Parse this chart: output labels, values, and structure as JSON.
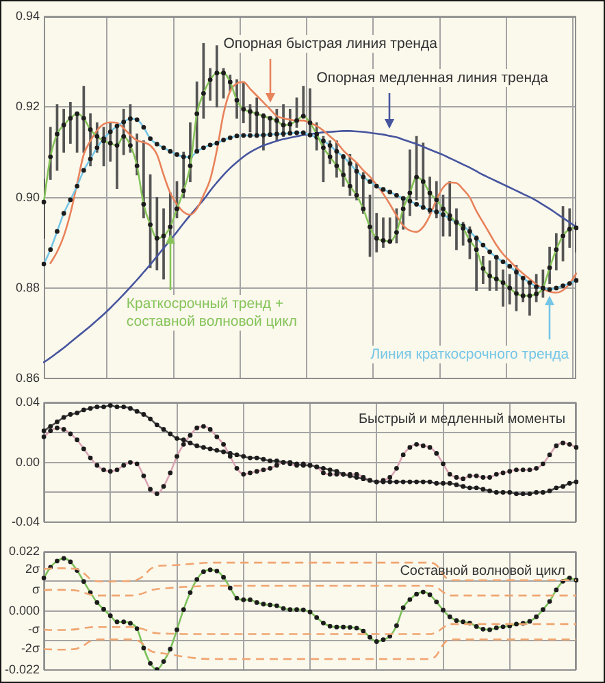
{
  "chart_data": [
    {
      "type": "line",
      "categories": [
        null,
        null,
        null,
        null,
        null,
        null,
        null,
        null,
        null,
        null,
        null,
        null,
        null,
        null,
        null,
        null,
        null,
        null,
        null,
        null,
        null,
        null,
        null,
        null,
        null,
        null,
        null,
        null,
        null,
        null,
        null,
        null,
        null,
        null,
        null,
        null,
        null,
        null,
        null,
        null,
        null,
        null,
        null,
        null,
        null,
        null,
        null,
        null,
        null,
        null,
        null,
        null,
        null,
        null,
        null,
        null,
        null,
        null,
        null,
        null,
        null,
        null,
        null,
        null,
        null,
        null,
        null,
        null,
        null,
        null,
        null,
        null,
        null,
        null,
        null,
        null,
        null,
        null,
        null,
        null,
        null
      ],
      "ylim": [
        0.86,
        0.94
      ],
      "yticks": [
        0.86,
        0.88,
        {
          "value": 0.9,
          "label": "0.90"
        },
        0.92,
        0.94
      ],
      "grid": true,
      "tick_labels": "y",
      "series": [
        {
          "type": "bar",
          "color": "#555555",
          "base": [
            0.891,
            0.904,
            0.906,
            0.91,
            0.912,
            0.91,
            0.91,
            0.907,
            0.91,
            0.907,
            0.908,
            0.902,
            0.9095,
            0.91,
            0.905,
            0.8955,
            0.8845,
            0.884,
            0.882,
            0.891,
            0.8955,
            0.9,
            0.9035,
            0.91,
            0.9175,
            0.9215,
            0.92,
            0.922,
            0.9235,
            0.9175,
            0.9165,
            0.9145,
            0.9135,
            0.9105,
            0.9135,
            0.9125,
            0.9135,
            0.9145,
            0.9155,
            0.9175,
            0.9135,
            0.9105,
            0.9035,
            0.9075,
            0.9045,
            0.9025,
            0.9005,
            0.8995,
            0.8965,
            0.887,
            0.888,
            0.889,
            0.89,
            0.89,
            0.893,
            0.896,
            0.8995,
            0.898,
            0.8965,
            0.8955,
            0.8915,
            0.8915,
            0.8885,
            0.8895,
            0.8865,
            0.8795,
            0.881,
            0.8795,
            0.8795,
            0.876,
            0.8765,
            0.875,
            0.877,
            0.874,
            0.877,
            0.878,
            0.881,
            0.884,
            0.886,
            0.889,
            0.888
          ],
          "values": [
            0.013,
            0.0115,
            0.0145,
            0.0095,
            0.009,
            0.0085,
            0.0145,
            0.0115,
            0.0065,
            0.0085,
            0.0085,
            0.0135,
            0.01,
            0.0105,
            0.009,
            0.017,
            0.0205,
            0.016,
            0.0155,
            0.01,
            0.008,
            0.01,
            0.013,
            0.0155,
            0.0165,
            0.007,
            0.0135,
            0.0065,
            0.0035,
            0.0085,
            0.009,
            0.006,
            0.0085,
            0.008,
            0.004,
            0.007,
            0.007,
            0.005,
            0.0065,
            0.007,
            0.0105,
            0.006,
            0.01,
            0.005,
            0.008,
            0.007,
            0.009,
            0.008,
            0.009,
            0.0135,
            0.0085,
            0.0065,
            0.0055,
            0.0075,
            0.0065,
            0.0145,
            0.014,
            0.014,
            0.008,
            0.008,
            0.009,
            0.012,
            0.009,
            0.005,
            0.007,
            0.012,
            0.006,
            0.0065,
            0.0075,
            0.008,
            0.0065,
            0.01,
            0.005,
            0.007,
            0.006,
            0.006,
            0.008,
            0.008,
            0.012,
            0.0085,
            0.0065
          ]
        },
        {
          "name": "Опорная медленная линия тренда",
          "color": "#46559e",
          "values": [
            0.8636,
            0.8646,
            0.8657,
            0.8668,
            0.868,
            0.8692,
            0.8704,
            0.8716,
            0.8729,
            0.8742,
            0.8756,
            0.8771,
            0.8786,
            0.8802,
            0.8818,
            0.8835,
            0.8852,
            0.887,
            0.8888,
            0.8906,
            0.8924,
            0.8943,
            0.8961,
            0.8978,
            0.8995,
            0.9015,
            0.9033,
            0.905,
            0.9065,
            0.9078,
            0.909,
            0.91,
            0.9108,
            0.9115,
            0.912,
            0.9125,
            0.9129,
            0.9132,
            0.9135,
            0.9138,
            0.914,
            0.9142,
            0.9144,
            0.9145,
            0.9146,
            0.9147,
            0.9147,
            0.9146,
            0.9145,
            0.9143,
            0.9141,
            0.9139,
            0.9136,
            0.9133,
            0.9128,
            0.9123,
            0.9118,
            0.9112,
            0.9106,
            0.91,
            0.9094,
            0.9087,
            0.908,
            0.9073,
            0.9066,
            0.9058,
            0.905,
            0.9043,
            0.9036,
            0.9029,
            0.9022,
            0.9015,
            0.9008,
            0.9001,
            0.8993,
            0.8984,
            0.8975,
            0.8965,
            0.8955,
            0.8945,
            0.8935
          ]
        },
        {
          "name": "Опорная быстрая линия тренда",
          "color": "#e8825a",
          "values": [
            null,
            0.8855,
            0.888,
            0.8915,
            0.8965,
            0.903,
            0.9095,
            0.9125,
            0.9148,
            0.9162,
            0.9166,
            0.9165,
            0.9153,
            0.9138,
            0.9126,
            0.9122,
            0.9115,
            0.9095,
            0.905,
            0.901,
            0.8985,
            0.8968,
            0.8962,
            0.8975,
            0.9005,
            0.904,
            0.9104,
            0.9185,
            0.9235,
            0.9252,
            0.9255,
            0.924,
            0.9225,
            0.921,
            0.9195,
            0.918,
            0.9175,
            0.9172,
            0.917,
            0.917,
            0.9165,
            0.9158,
            0.9148,
            0.9135,
            0.9122,
            0.9104,
            0.909,
            0.9077,
            0.906,
            0.9046,
            0.9028,
            0.9008,
            0.8985,
            0.896,
            0.8938,
            0.8927,
            0.8924,
            0.8935,
            0.896,
            0.8995,
            0.9022,
            0.9033,
            0.9032,
            0.9018,
            0.9,
            0.897,
            0.8945,
            0.892,
            0.8895,
            0.8875,
            0.886,
            0.8845,
            0.8832,
            0.882,
            0.8808,
            0.8798,
            0.8792,
            0.879,
            0.8795,
            0.881,
            0.8832
          ]
        },
        {
          "name": "Линия краткосрочного тренда",
          "color": "#74c6e6",
          "marker": "circle",
          "values": [
            0.8853,
            0.8885,
            0.8925,
            0.8965,
            0.8995,
            0.9025,
            0.906,
            0.9085,
            0.911,
            0.913,
            0.9145,
            0.9158,
            0.9167,
            0.9174,
            0.9172,
            0.9155,
            0.913,
            0.9118,
            0.911,
            0.9102,
            0.9095,
            0.909,
            0.9089,
            0.9102,
            0.911,
            0.9116,
            0.912,
            0.9127,
            0.9132,
            0.9136,
            0.9137,
            0.9137,
            0.9137,
            0.9138,
            0.9139,
            0.914,
            0.9141,
            0.9142,
            0.9143,
            0.9143,
            0.9138,
            0.9133,
            0.9125,
            0.9115,
            0.9102,
            0.909,
            0.9075,
            0.9058,
            0.9045,
            0.9035,
            0.9025,
            0.9018,
            0.9012,
            0.9005,
            0.8998,
            0.8992,
            0.8985,
            0.8978,
            0.8972,
            0.8968,
            0.8962,
            0.8953,
            0.8945,
            0.8937,
            0.8925,
            0.891,
            0.8895,
            0.888,
            0.8868,
            0.8858,
            0.8848,
            0.8835,
            0.8822,
            0.8812,
            0.8803,
            0.8799,
            0.8797,
            0.88,
            0.8805,
            0.881,
            0.8817
          ]
        },
        {
          "name": "Краткосрочный тренд + составной волновой цикл",
          "color": "#86c45a",
          "marker": "circle",
          "values": [
            0.899,
            0.909,
            0.914,
            0.916,
            0.9175,
            0.9185,
            0.9175,
            0.915,
            0.9135,
            0.9125,
            0.912,
            0.9115,
            0.9135,
            0.9115,
            0.907,
            0.8985,
            0.894,
            0.891,
            0.8915,
            0.8935,
            0.8975,
            0.9015,
            0.907,
            0.9185,
            0.923,
            0.926,
            0.9275,
            0.9275,
            0.9255,
            0.9215,
            0.9195,
            0.919,
            0.9185,
            0.918,
            0.9175,
            0.917,
            0.916,
            0.9162,
            0.917,
            0.918,
            0.9165,
            0.914,
            0.911,
            0.909,
            0.907,
            0.905,
            0.9025,
            0.9005,
            0.8975,
            0.8935,
            0.891,
            0.8905,
            0.8903,
            0.8923,
            0.8975,
            0.901,
            0.9045,
            0.9035,
            0.901,
            0.8995,
            0.8975,
            0.896,
            0.8945,
            0.8932,
            0.8905,
            0.8885,
            0.8843,
            0.8827,
            0.882,
            0.8812,
            0.88,
            0.8788,
            0.8783,
            0.8783,
            0.8787,
            0.88,
            0.8845,
            0.8885,
            0.8915,
            0.893,
            0.8933
          ]
        }
      ]
    },
    {
      "type": "line",
      "title": "Быстрый и медленный моменты",
      "categories": [
        null,
        null,
        null,
        null,
        null,
        null,
        null,
        null,
        null,
        null,
        null,
        null,
        null,
        null,
        null,
        null,
        null,
        null,
        null,
        null,
        null,
        null,
        null,
        null,
        null,
        null,
        null,
        null,
        null,
        null,
        null,
        null,
        null,
        null,
        null,
        null,
        null,
        null,
        null,
        null,
        null,
        null,
        null,
        null,
        null,
        null,
        null,
        null,
        null,
        null,
        null,
        null,
        null,
        null,
        null,
        null,
        null,
        null,
        null,
        null,
        null,
        null,
        null,
        null,
        null,
        null,
        null,
        null,
        null,
        null,
        null,
        null,
        null,
        null,
        null,
        null,
        null,
        null,
        null,
        null,
        null
      ],
      "ylim": [
        -0.04,
        0.04
      ],
      "yticks": [
        -0.04,
        {
          "value": -0.02,
          "label": null
        },
        {
          "value": 0,
          "label": "0.00"
        },
        {
          "value": 0.02,
          "label": null
        },
        0.04
      ],
      "grid": true,
      "tick_labels": "y",
      "series": [
        {
          "color": "#d9a3b3",
          "marker": "circle",
          "values": [
            0.017,
            0.021,
            0.023,
            0.022,
            0.019,
            0.015,
            0.009,
            0.003,
            -0.002,
            -0.005,
            -0.006,
            -0.005,
            -0.002,
            0,
            -0.001,
            -0.009,
            -0.018,
            -0.021,
            -0.016,
            -0.007,
            0.004,
            0.012,
            0.018,
            0.023,
            0.024,
            0.022,
            0.017,
            0.012,
            0.004,
            -0.004,
            -0.008,
            -0.007,
            -0.006,
            -0.005,
            -0.004,
            -0.002,
            0,
            -0.001,
            -0.002,
            -0.001,
            -0.002,
            -0.003,
            -0.007,
            -0.008,
            -0.008,
            -0.008,
            -0.008,
            -0.008,
            -0.01,
            -0.012,
            -0.013,
            -0.012,
            -0.01,
            -0.004,
            0.005,
            0.01,
            0.012,
            0.011,
            0.01,
            0.006,
            -0.001,
            -0.008,
            -0.01,
            -0.011,
            -0.009,
            -0.009,
            -0.01,
            -0.01,
            -0.008,
            -0.007,
            -0.006,
            -0.005,
            -0.005,
            -0.005,
            -0.004,
            -0.001,
            0.005,
            0.011,
            0.013,
            0.012,
            0.01
          ]
        },
        {
          "color": "#4d4d4d",
          "marker": "circle",
          "values": [
            0.021,
            0.024,
            0.027,
            0.03,
            0.032,
            0.033,
            0.035,
            0.036,
            0.037,
            0.037,
            0.038,
            0.037,
            0.037,
            0.036,
            0.034,
            0.032,
            0.029,
            0.025,
            0.022,
            0.019,
            0.016,
            0.015,
            0.013,
            0.011,
            0.01,
            0.009,
            0.008,
            0.007,
            0.006,
            0.005,
            0.004,
            0.003,
            0.003,
            0.002,
            0.001,
            0.001,
            0,
            0,
            -0.001,
            -0.002,
            -0.002,
            -0.003,
            -0.004,
            -0.005,
            -0.006,
            -0.008,
            -0.009,
            -0.01,
            -0.011,
            -0.012,
            -0.013,
            -0.013,
            -0.013,
            -0.013,
            -0.013,
            -0.013,
            -0.013,
            -0.013,
            -0.013,
            -0.014,
            -0.014,
            -0.014,
            -0.015,
            -0.016,
            -0.017,
            -0.017,
            -0.018,
            -0.019,
            -0.02,
            -0.02,
            -0.02,
            -0.021,
            -0.021,
            -0.021,
            -0.02,
            -0.02,
            -0.019,
            -0.017,
            -0.016,
            -0.014,
            -0.013
          ]
        }
      ]
    },
    {
      "type": "line",
      "title": "Составной волновой цикл",
      "categories": [
        null,
        null,
        null,
        null,
        null,
        null,
        null,
        null,
        null,
        null,
        null,
        null,
        null,
        null,
        null,
        null,
        null,
        null,
        null,
        null,
        null,
        null,
        null,
        null,
        null,
        null,
        null,
        null,
        null,
        null,
        null,
        null,
        null,
        null,
        null,
        null,
        null,
        null,
        null,
        null,
        null,
        null,
        null,
        null,
        null,
        null,
        null,
        null,
        null,
        null,
        null,
        null,
        null,
        null,
        null,
        null,
        null,
        null,
        null,
        null,
        null,
        null,
        null,
        null,
        null,
        null,
        null,
        null,
        null,
        null,
        null,
        null,
        null,
        null,
        null,
        null,
        null,
        null,
        null,
        null,
        null
      ],
      "ylim": [
        -0.022,
        0.022
      ],
      "yticks": [
        -0.022,
        {
          "value": -0.011,
          "label": null
        },
        {
          "value": 0,
          "label": "0.000"
        },
        {
          "value": 0.011,
          "label": null
        },
        0.022
      ],
      "grid": true,
      "tick_labels": "y",
      "series": [
        {
          "color": "#7cc05a",
          "marker": "circle",
          "values": [
            0.0122,
            0.0162,
            0.0185,
            0.0195,
            0.0182,
            0.015,
            0.0109,
            0.0068,
            0.0031,
            0.0006,
            -0.0018,
            -0.0041,
            -0.0041,
            -0.0046,
            -0.0066,
            -0.0138,
            -0.0195,
            -0.0218,
            -0.0188,
            -0.0142,
            -0.007,
            0.0005,
            0.0068,
            0.0117,
            0.0145,
            0.0152,
            0.0148,
            0.0125,
            0.0085,
            0.0047,
            0.0041,
            0.0041,
            0.0031,
            0.0025,
            0.0022,
            0.0019,
            0.0009,
            0.0005,
            0.0005,
            0.0004,
            -0.0004,
            -0.0025,
            -0.0045,
            -0.0057,
            -0.006,
            -0.006,
            -0.0061,
            -0.0064,
            -0.0075,
            -0.0098,
            -0.0114,
            -0.0107,
            -0.0094,
            -0.0055,
            0.0012,
            0.0042,
            0.0062,
            0.007,
            0.006,
            0.0033,
            0.0003,
            -0.0022,
            -0.0036,
            -0.0041,
            -0.0045,
            -0.0058,
            -0.0068,
            -0.007,
            -0.0063,
            -0.0059,
            -0.0056,
            -0.0049,
            -0.0046,
            -0.0039,
            -0.0022,
            0.0005,
            0.0035,
            0.0078,
            0.011,
            0.0122,
            0.0114
          ]
        },
        {
          "name": "2σ",
          "color": "#f0a570",
          "line_style": "dashed",
          "values": [
            0.0155,
            0.0157,
            0.0158,
            0.0158,
            0.0157,
            0.0155,
            0.014,
            0.0118,
            0.011,
            0.0109,
            0.0109,
            0.011,
            0.011,
            0.0111,
            0.0115,
            0.013,
            0.0155,
            0.0166,
            0.0168,
            0.0169,
            0.017,
            0.0172,
            0.0174,
            0.0176,
            0.0178,
            0.0179,
            0.0179,
            0.0179,
            0.0179,
            0.0179,
            0.0179,
            0.0179,
            0.0179,
            0.0179,
            0.0179,
            0.0179,
            0.0179,
            0.0179,
            0.0179,
            0.0179,
            0.0179,
            0.0179,
            0.0179,
            0.0179,
            0.0179,
            0.0179,
            0.0179,
            0.0179,
            0.0179,
            0.0179,
            0.0179,
            0.0179,
            0.0179,
            0.0179,
            0.0179,
            0.0179,
            0.0179,
            0.0179,
            0.0179,
            0.017,
            0.0135,
            0.0114,
            0.0114,
            0.0114,
            0.0114,
            0.0114,
            0.0114,
            0.0114,
            0.0114,
            0.0114,
            0.0114,
            0.0114,
            0.0114,
            0.0114,
            0.0114,
            0.0114,
            0.0114,
            0.0114,
            0.0114,
            0.0114,
            0.0114
          ]
        },
        {
          "name": "σ",
          "color": "#f0a570",
          "line_style": "dashed",
          "values": [
            0.0077,
            0.0078,
            0.0078,
            0.0078,
            0.0077,
            0.0075,
            0.0068,
            0.006,
            0.0057,
            0.0057,
            0.0057,
            0.0057,
            0.0057,
            0.0057,
            0.0059,
            0.0066,
            0.0076,
            0.0081,
            0.0083,
            0.0085,
            0.0087,
            0.0089,
            0.009,
            0.0091,
            0.0092,
            0.0093,
            0.0093,
            0.0093,
            0.0093,
            0.0093,
            0.0093,
            0.0093,
            0.0093,
            0.0093,
            0.0093,
            0.0093,
            0.0093,
            0.0093,
            0.0093,
            0.0093,
            0.0093,
            0.0093,
            0.0093,
            0.0093,
            0.0093,
            0.0093,
            0.0093,
            0.0093,
            0.0093,
            0.0093,
            0.0093,
            0.0093,
            0.0093,
            0.0093,
            0.0093,
            0.0093,
            0.0093,
            0.0093,
            0.0093,
            0.0088,
            0.007,
            0.0057,
            0.0057,
            0.0057,
            0.0057,
            0.0057,
            0.0057,
            0.0057,
            0.0057,
            0.0057,
            0.0057,
            0.0057,
            0.0057,
            0.0057,
            0.0057,
            0.0057,
            0.0057,
            0.0057,
            0.0057,
            0.0057,
            0.0057
          ]
        },
        {
          "name": "-σ",
          "color": "#f0a570",
          "line_style": "dashed",
          "values": [
            -0.007,
            -0.0071,
            -0.0071,
            -0.0071,
            -0.007,
            -0.0068,
            -0.0064,
            -0.0061,
            -0.006,
            -0.006,
            -0.006,
            -0.006,
            -0.006,
            -0.006,
            -0.0062,
            -0.0068,
            -0.0078,
            -0.0083,
            -0.0084,
            -0.0085,
            -0.0085,
            -0.0086,
            -0.0086,
            -0.0086,
            -0.0086,
            -0.0086,
            -0.0086,
            -0.0086,
            -0.0086,
            -0.0086,
            -0.0086,
            -0.0086,
            -0.0086,
            -0.0086,
            -0.0086,
            -0.0086,
            -0.0086,
            -0.0086,
            -0.0086,
            -0.0086,
            -0.0086,
            -0.0086,
            -0.0086,
            -0.0086,
            -0.0086,
            -0.0086,
            -0.0086,
            -0.0086,
            -0.0086,
            -0.0086,
            -0.0086,
            -0.0086,
            -0.0086,
            -0.0086,
            -0.0086,
            -0.0086,
            -0.0086,
            -0.0086,
            -0.0086,
            -0.008,
            -0.0062,
            -0.0049,
            -0.0049,
            -0.0049,
            -0.0049,
            -0.0049,
            -0.0049,
            -0.0049,
            -0.0049,
            -0.0049,
            -0.0049,
            -0.0049,
            -0.0049,
            -0.0049,
            -0.0049,
            -0.0049,
            -0.0049,
            -0.0049,
            -0.0049,
            -0.0049,
            -0.0049
          ]
        },
        {
          "name": "-2σ",
          "color": "#f0a570",
          "line_style": "dashed",
          "values": [
            -0.0142,
            -0.0143,
            -0.0144,
            -0.0144,
            -0.0143,
            -0.014,
            -0.0128,
            -0.0112,
            -0.0106,
            -0.0106,
            -0.0106,
            -0.0106,
            -0.0106,
            -0.0106,
            -0.0109,
            -0.0125,
            -0.0148,
            -0.0155,
            -0.0158,
            -0.0162,
            -0.0166,
            -0.017,
            -0.0173,
            -0.0176,
            -0.0178,
            -0.0179,
            -0.0179,
            -0.0179,
            -0.0179,
            -0.0179,
            -0.0179,
            -0.0179,
            -0.0179,
            -0.0179,
            -0.0179,
            -0.0179,
            -0.0179,
            -0.0179,
            -0.0179,
            -0.0179,
            -0.0179,
            -0.0179,
            -0.0179,
            -0.0179,
            -0.0179,
            -0.0179,
            -0.0179,
            -0.0179,
            -0.0179,
            -0.0179,
            -0.0179,
            -0.0179,
            -0.0179,
            -0.0179,
            -0.0179,
            -0.0179,
            -0.0179,
            -0.0179,
            -0.0179,
            -0.0165,
            -0.0125,
            -0.0106,
            -0.0106,
            -0.0106,
            -0.0106,
            -0.0106,
            -0.0106,
            -0.0106,
            -0.0106,
            -0.0106,
            -0.0106,
            -0.0106,
            -0.0106,
            -0.0106,
            -0.0106,
            -0.0106,
            -0.0106,
            -0.0106,
            -0.0106,
            -0.0106,
            -0.0106
          ]
        }
      ]
    }
  ]
}
